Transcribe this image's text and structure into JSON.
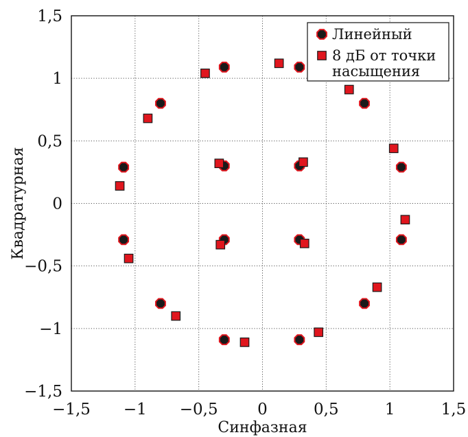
{
  "chart_data": {
    "type": "scatter",
    "title": "",
    "xlabel": "Синфазная",
    "ylabel": "Квадратурная",
    "xlim": [
      -1.5,
      1.5
    ],
    "ylim": [
      -1.5,
      1.5
    ],
    "x_ticks": [
      -1.5,
      -1,
      -0.5,
      0,
      0.5,
      1,
      1.5
    ],
    "y_ticks": [
      -1.5,
      -1,
      -0.5,
      0,
      0.5,
      1,
      1.5
    ],
    "x_tick_labels": [
      "−1,5",
      "−1",
      "−0,5",
      "0",
      "0,5",
      "1",
      "1,5"
    ],
    "y_tick_labels": [
      "−1,5",
      "−1",
      "−0,5",
      "0",
      "0,5",
      "1",
      "1,5"
    ],
    "grid": true,
    "legend_position": "top-right",
    "series": [
      {
        "name": "Линейный",
        "marker": "octagon",
        "fill": "#1a1a1a",
        "edge": "#e0161e",
        "points": [
          [
            -0.3,
            1.09
          ],
          [
            0.29,
            1.09
          ],
          [
            -0.8,
            0.8
          ],
          [
            0.8,
            0.8
          ],
          [
            -1.09,
            0.29
          ],
          [
            -0.3,
            0.3
          ],
          [
            0.29,
            0.3
          ],
          [
            1.09,
            0.29
          ],
          [
            -1.09,
            -0.29
          ],
          [
            -0.3,
            -0.29
          ],
          [
            0.29,
            -0.29
          ],
          [
            1.09,
            -0.29
          ],
          [
            -0.8,
            -0.8
          ],
          [
            0.8,
            -0.8
          ],
          [
            -0.3,
            -1.09
          ],
          [
            0.29,
            -1.09
          ]
        ]
      },
      {
        "name": "8 дБ от точки насыщения",
        "marker": "square",
        "fill": "#e0161e",
        "edge": "#1a1a1a",
        "points": [
          [
            -0.45,
            1.04
          ],
          [
            0.13,
            1.12
          ],
          [
            -0.9,
            0.68
          ],
          [
            0.68,
            0.91
          ],
          [
            -1.12,
            0.14
          ],
          [
            -0.34,
            0.32
          ],
          [
            0.32,
            0.33
          ],
          [
            1.03,
            0.44
          ],
          [
            -1.05,
            -0.44
          ],
          [
            -0.33,
            -0.33
          ],
          [
            0.33,
            -0.32
          ],
          [
            1.12,
            -0.13
          ],
          [
            -0.68,
            -0.9
          ],
          [
            0.9,
            -0.67
          ],
          [
            -0.14,
            -1.11
          ],
          [
            0.44,
            -1.03
          ]
        ]
      }
    ]
  },
  "legend": {
    "items": [
      {
        "label_lines": [
          "Линейный"
        ]
      },
      {
        "label_lines": [
          "8 дБ от точки",
          "насыщения"
        ]
      }
    ]
  }
}
